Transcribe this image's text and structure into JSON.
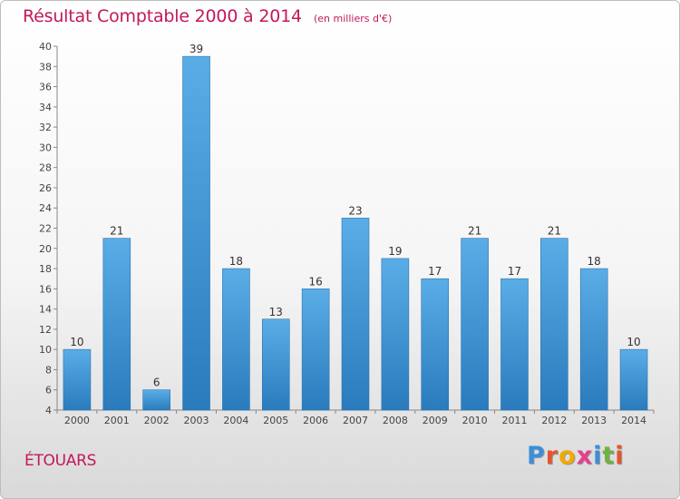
{
  "header": {
    "title": "Résultat Comptable 2000 à 2014",
    "unit": "(en milliers d'€)"
  },
  "footer": {
    "commune": "ÉTOUARS",
    "brand": "Proxiti"
  },
  "colors": {
    "title": "#c2185b",
    "bar_light": "#5aade6",
    "bar_dark": "#2a7bbd"
  },
  "chart_data": {
    "type": "bar",
    "title": "Résultat Comptable 2000 à 2014",
    "subtitle": "(en milliers d'€)",
    "categories": [
      "2000",
      "2001",
      "2002",
      "2003",
      "2004",
      "2005",
      "2006",
      "2007",
      "2008",
      "2009",
      "2010",
      "2011",
      "2012",
      "2013",
      "2014"
    ],
    "values": [
      10,
      21,
      6,
      39,
      18,
      13,
      16,
      23,
      19,
      17,
      21,
      17,
      21,
      18,
      10
    ],
    "ylim": [
      4,
      40
    ],
    "yticks": [
      4,
      6,
      8,
      10,
      12,
      14,
      16,
      18,
      20,
      22,
      24,
      26,
      28,
      30,
      32,
      34,
      36,
      38,
      40
    ],
    "grid": false,
    "xlabel": "",
    "ylabel": ""
  }
}
